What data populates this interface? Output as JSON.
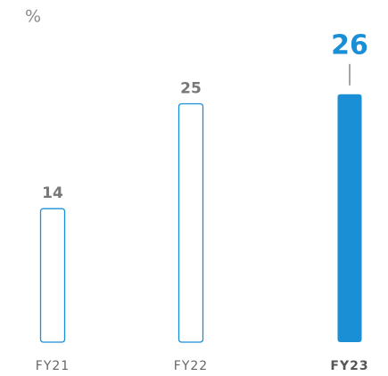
{
  "chart_data": {
    "type": "bar",
    "ylabel": "%",
    "categories": [
      "FY21",
      "FY22",
      "FY23"
    ],
    "values": [
      14,
      25,
      26
    ],
    "color": "#1a8fd6",
    "highlight": 2
  }
}
